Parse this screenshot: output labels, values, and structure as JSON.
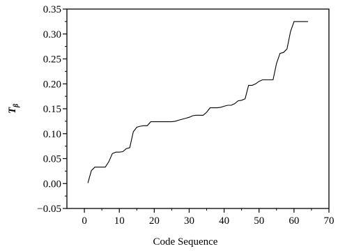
{
  "chart_data": {
    "type": "line",
    "xlabel": "Code Sequence",
    "ylabel": "T",
    "ylabel_subscript": "β",
    "xlim": [
      -5,
      70
    ],
    "ylim": [
      -0.05,
      0.35
    ],
    "xticks": [
      0,
      10,
      20,
      30,
      40,
      50,
      60,
      70
    ],
    "xtick_labels": [
      "0",
      "10",
      "20",
      "30",
      "40",
      "50",
      "60",
      "70"
    ],
    "yticks": [
      -0.05,
      0.0,
      0.05,
      0.1,
      0.15,
      0.2,
      0.25,
      0.3,
      0.35
    ],
    "ytick_labels": [
      "−0.05",
      "0.00",
      "0.05",
      "0.10",
      "0.15",
      "0.20",
      "0.25",
      "0.30",
      "0.35"
    ],
    "grid": false,
    "series": [
      {
        "x": [
          1,
          2,
          3,
          4,
          5,
          6,
          7,
          8,
          9,
          10,
          11,
          12,
          13,
          14,
          15,
          16,
          17,
          18,
          19,
          20,
          21,
          22,
          23,
          24,
          25,
          26,
          27,
          28,
          29,
          30,
          31,
          32,
          33,
          34,
          35,
          36,
          37,
          38,
          39,
          40,
          41,
          42,
          43,
          44,
          45,
          46,
          47,
          48,
          49,
          50,
          51,
          52,
          53,
          54,
          55,
          56,
          57,
          58,
          59,
          60,
          61,
          62,
          63,
          64
        ],
        "values": [
          0.001,
          0.026,
          0.033,
          0.033,
          0.033,
          0.033,
          0.044,
          0.06,
          0.063,
          0.063,
          0.064,
          0.07,
          0.072,
          0.104,
          0.113,
          0.115,
          0.116,
          0.116,
          0.124,
          0.124,
          0.124,
          0.124,
          0.124,
          0.124,
          0.124,
          0.125,
          0.127,
          0.129,
          0.131,
          0.133,
          0.136,
          0.137,
          0.137,
          0.137,
          0.143,
          0.152,
          0.152,
          0.152,
          0.153,
          0.155,
          0.157,
          0.157,
          0.16,
          0.166,
          0.167,
          0.17,
          0.197,
          0.197,
          0.2,
          0.205,
          0.208,
          0.208,
          0.208,
          0.208,
          0.241,
          0.261,
          0.263,
          0.27,
          0.305,
          0.325,
          0.325,
          0.325,
          0.325,
          0.325
        ]
      }
    ]
  }
}
